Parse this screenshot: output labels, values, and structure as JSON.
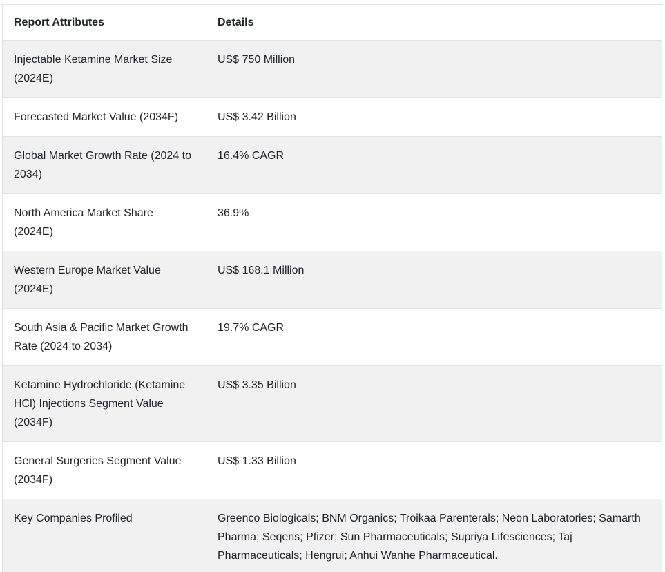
{
  "table": {
    "name": "injectable-ketamine-market-report-summary",
    "headers": {
      "attribute": "Report Attributes",
      "detail": "Details"
    },
    "rows": [
      {
        "attribute": "Injectable Ketamine Market Size (2024E)",
        "detail": "US$ 750 Million"
      },
      {
        "attribute": "Forecasted Market Value (2034F)",
        "detail": "US$ 3.42 Billion"
      },
      {
        "attribute": "Global Market Growth Rate (2024 to 2034)",
        "detail": "16.4% CAGR"
      },
      {
        "attribute": "North America Market Share (2024E)",
        "detail": "36.9%"
      },
      {
        "attribute": "Western Europe Market Value (2024E)",
        "detail": "US$ 168.1 Million"
      },
      {
        "attribute": "South Asia & Pacific Market Growth Rate (2024 to 2034)",
        "detail": "19.7% CAGR"
      },
      {
        "attribute": "Ketamine Hydrochloride (Ketamine HCl) Injections Segment Value (2034F)",
        "detail": "US$ 3.35 Billion"
      },
      {
        "attribute": "General Surgeries Segment Value (2034F)",
        "detail": "US$ 1.33 Billion"
      },
      {
        "attribute": "Key Companies Profiled",
        "detail": "Greenco Biologicals; BNM Organics; Troikaa Parenterals; Neon Laboratories; Samarth Pharma; Seqens; Pfizer; Sun Pharmaceuticals; Supriya Lifesciences; Taj Pharmaceuticals; Hengrui; Anhui Wanhe Pharmaceutical."
      }
    ],
    "colors": {
      "row_stripe": "#f1f1f2",
      "border": "#dee2e6",
      "text": "#212529",
      "background": "#ffffff"
    }
  }
}
